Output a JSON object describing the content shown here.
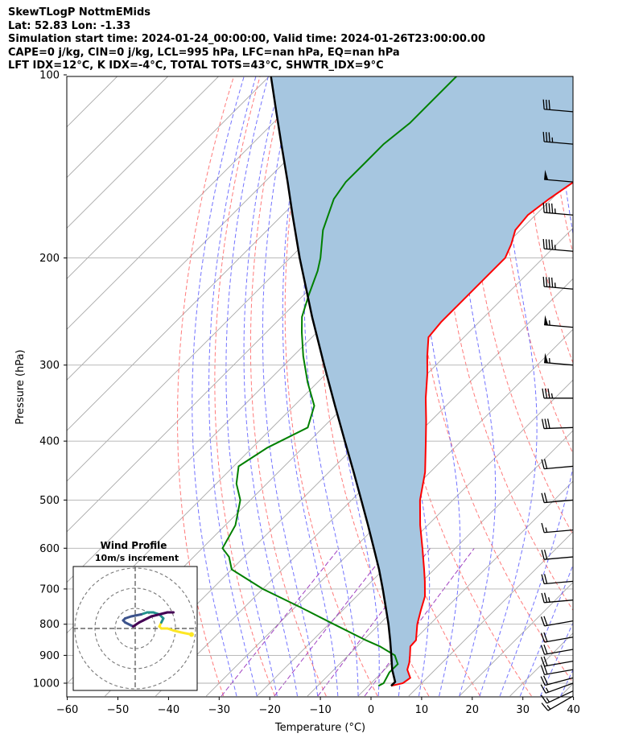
{
  "header": {
    "lines": [
      "SkewTLogP NottmEMids",
      "Lat: 52.83   Lon: -1.33",
      "Simulation start time: 2024-01-24_00:00:00, Valid time: 2024-01-26T23:00:00.00",
      "CAPE=0 j/kg, CIN=0 j/kg, LCL=995 hPa, LFC=nan hPa, EQ=nan hPa",
      "LFT IDX=12°C, K IDX=-4°C, TOTAL TOTS=43°C, SHWTR_IDX=9°C"
    ]
  },
  "chart_data": [
    {
      "type": "line",
      "subtype": "skew-t log-p",
      "xlabel": "Temperature (°C)",
      "ylabel": "Pressure (hPa)",
      "x_ticks": [
        -60,
        -50,
        -40,
        -30,
        -20,
        -10,
        0,
        10,
        20,
        30,
        40
      ],
      "x_tick_labels": [
        "−60",
        "−50",
        "−40",
        "−30",
        "−20",
        "−10",
        "0",
        "10",
        "20",
        "30",
        "40"
      ],
      "y_ticks": [
        100,
        200,
        300,
        400,
        500,
        600,
        700,
        800,
        900,
        1000
      ],
      "xlim": [
        -60,
        40
      ],
      "ylim": [
        1050,
        100
      ],
      "y_scale": "log",
      "skew": "isotherms slanted 45°",
      "grid": true,
      "colors": {
        "temperature": "#ff0000",
        "dewpoint": "#008000",
        "parcel": "#000000",
        "cape_shading": "#a6c6e0",
        "dry_adiabats": "#ff6464",
        "moist_adiabats": "#5a5aff",
        "mixing_ratio": "#a040c0",
        "isotherms": "#a8a8a8"
      },
      "series": [
        {
          "key": "temperature",
          "pressure": [
            1010,
            1000,
            980,
            950,
            925,
            900,
            870,
            850,
            800,
            760,
            720,
            680,
            650,
            600,
            550,
            500,
            450,
            400,
            370,
            340,
            310,
            290,
            270,
            255,
            240,
            225,
            210,
            200,
            190,
            180,
            170,
            160,
            150,
            140,
            130,
            120,
            110,
            100
          ],
          "values": [
            4.5,
            6.3,
            6.7,
            4.5,
            3.5,
            2.2,
            0.5,
            0.4,
            -2.5,
            -4.5,
            -6.5,
            -9.5,
            -12,
            -16.5,
            -21.5,
            -26.5,
            -31,
            -37,
            -41,
            -45.5,
            -50,
            -53.5,
            -57,
            -57.5,
            -57.5,
            -57.5,
            -57.5,
            -57.5,
            -59,
            -61,
            -61.5,
            -60.5,
            -59,
            -57.5,
            -56,
            -55,
            -54.5,
            -54
          ]
        },
        {
          "key": "dewpoint",
          "pressure": [
            1010,
            1000,
            960,
            930,
            900,
            870,
            850,
            800,
            750,
            700,
            650,
            620,
            600,
            550,
            500,
            470,
            440,
            410,
            380,
            350,
            320,
            290,
            265,
            250,
            230,
            210,
            200,
            180,
            160,
            150,
            140,
            130,
            120,
            110,
            100
          ],
          "values": [
            2,
            2.5,
            1.5,
            1.5,
            -0.8,
            -5.5,
            -9.5,
            -19,
            -29,
            -40,
            -50,
            -53,
            -56,
            -58,
            -62,
            -66,
            -69,
            -67,
            -63,
            -66,
            -72,
            -78,
            -83,
            -86,
            -89,
            -92,
            -94,
            -99,
            -103,
            -104,
            -104,
            -104,
            -103,
            -103,
            -103
          ]
        },
        {
          "key": "parcel",
          "pressure": [
            1010,
            995,
            950,
            900,
            850,
            800,
            750,
            700,
            650,
            600,
            550,
            500,
            450,
            400,
            350,
            300,
            250,
            200,
            170,
            150,
            130,
            115,
            100
          ],
          "values": [
            4.5,
            4.5,
            1.5,
            -1.5,
            -4.7,
            -8.2,
            -12.1,
            -16.3,
            -20.9,
            -26.1,
            -31.8,
            -38.1,
            -45.1,
            -53,
            -61.9,
            -72.1,
            -84,
            -98.1,
            -108,
            -115.5,
            -124.2,
            -131.6,
            -140
          ]
        }
      ],
      "wind_barbs": {
        "pressure": [
          1050,
          1030,
          1000,
          980,
          950,
          920,
          880,
          840,
          790,
          730,
          680,
          620,
          560,
          500,
          440,
          380,
          340,
          300,
          260,
          225,
          195,
          170,
          150,
          130,
          115
        ],
        "speed_kt": [
          15,
          15,
          15,
          20,
          20,
          20,
          20,
          20,
          20,
          25,
          20,
          20,
          15,
          20,
          20,
          30,
          35,
          55,
          55,
          45,
          45,
          45,
          50,
          35,
          30
        ],
        "direction_deg": [
          240,
          245,
          250,
          255,
          260,
          260,
          260,
          260,
          260,
          265,
          265,
          265,
          265,
          265,
          265,
          268,
          270,
          275,
          275,
          275,
          275,
          275,
          275,
          275,
          275
        ]
      }
    },
    {
      "type": "scatter",
      "subtype": "hodograph",
      "title": "Wind Profile",
      "subtitle": "10m/s increment",
      "rings_ms": [
        10,
        20,
        30
      ],
      "u": [
        28,
        23,
        19,
        16,
        13,
        12,
        13,
        14,
        12,
        9,
        6,
        3,
        -2,
        -5,
        -6,
        -5,
        -1,
        2,
        4,
        8,
        12,
        16,
        19
      ],
      "v": [
        -3,
        -2,
        -1,
        0,
        0,
        1,
        3,
        5,
        7,
        8,
        8,
        7,
        6,
        5,
        4,
        3,
        1,
        3,
        4,
        6,
        7,
        8,
        8
      ],
      "colormap": [
        "#fde725",
        "#21918c",
        "#3b528b",
        "#440154"
      ]
    }
  ]
}
